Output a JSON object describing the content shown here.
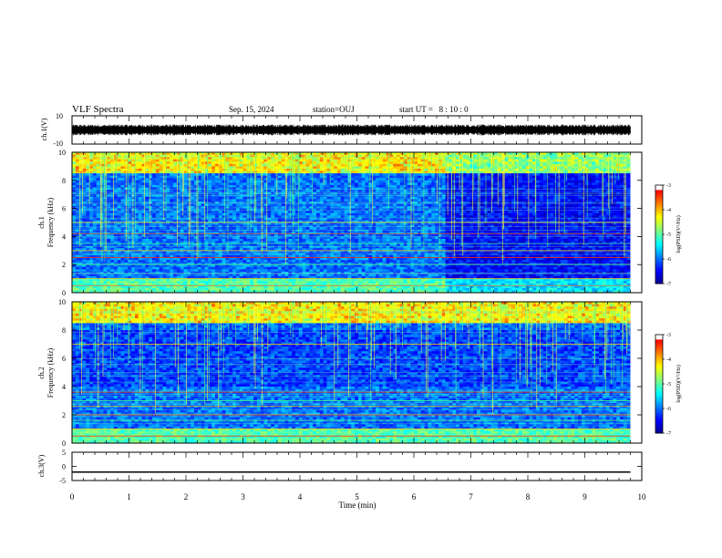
{
  "header": {
    "title": "VLF Spectra",
    "date": "Sep. 15, 2024",
    "station": "station=OUJ",
    "start": "start UT =   8 : 10 : 0"
  },
  "colors": {
    "background": "#ffffff",
    "axis": "#000000",
    "colormap": [
      "#00008f",
      "#0000ff",
      "#0080ff",
      "#00ffff",
      "#80ff80",
      "#ffff00",
      "#ff8000",
      "#ff0000",
      "#ffffff"
    ]
  },
  "chart_data": [
    {
      "type": "line",
      "id": "ch1-waveform",
      "ylabel": "ch.1(V)",
      "ylim": [
        -10,
        10
      ],
      "yticks": [
        "10",
        "-10"
      ],
      "xlim": [
        0,
        10
      ],
      "description_series": "broadband noise waveform around 0 V, amplitude ~±1.5 V",
      "x_end": 9.8
    },
    {
      "type": "heatmap",
      "id": "ch1-spectrogram",
      "ylabel": "ch.1",
      "ylabel2": "Frequency (kHz)",
      "ylim": [
        0,
        10
      ],
      "yticks": [
        "0",
        "2",
        "4",
        "6",
        "8",
        "10"
      ],
      "xlim": [
        0,
        10
      ],
      "x_end": 9.8,
      "colorbar": {
        "label": "log(PSD)(V²/Hz)",
        "range": [
          -7,
          -3
        ],
        "ticks": [
          "-3",
          "-4",
          "-5",
          "-6",
          "-7"
        ]
      },
      "quiet_after_min": 6.5,
      "bright_lines_khz": [
        0.5,
        1.0,
        2.0,
        2.5,
        3.0,
        3.5,
        4.2,
        5.0
      ]
    },
    {
      "type": "heatmap",
      "id": "ch2-spectrogram",
      "ylabel": "ch.2",
      "ylabel2": "Frequency (kHz)",
      "ylim": [
        0,
        10
      ],
      "yticks": [
        "0",
        "2",
        "4",
        "6",
        "8",
        "10"
      ],
      "xlim": [
        0,
        10
      ],
      "x_end": 9.8,
      "colorbar": {
        "label": "log(PSD)(V²/Hz)",
        "range": [
          -7,
          -3
        ],
        "ticks": [
          "-3",
          "-4",
          "-5",
          "-6",
          "-7"
        ]
      },
      "bright_lines_khz": [
        0.5,
        1.0,
        1.6,
        2.0,
        2.6,
        3.0,
        3.6,
        7.0
      ]
    },
    {
      "type": "line",
      "id": "ch3-waveform",
      "ylabel": "ch.3(V)",
      "ylim": [
        -5,
        5
      ],
      "yticks": [
        "5",
        "0",
        "-5"
      ],
      "xlim": [
        0,
        10
      ],
      "xticks": [
        "0",
        "1",
        "2",
        "3",
        "4",
        "5",
        "6",
        "7",
        "8",
        "9",
        "10"
      ],
      "xlabel": "Time (min)",
      "constant_value": -2
    }
  ]
}
